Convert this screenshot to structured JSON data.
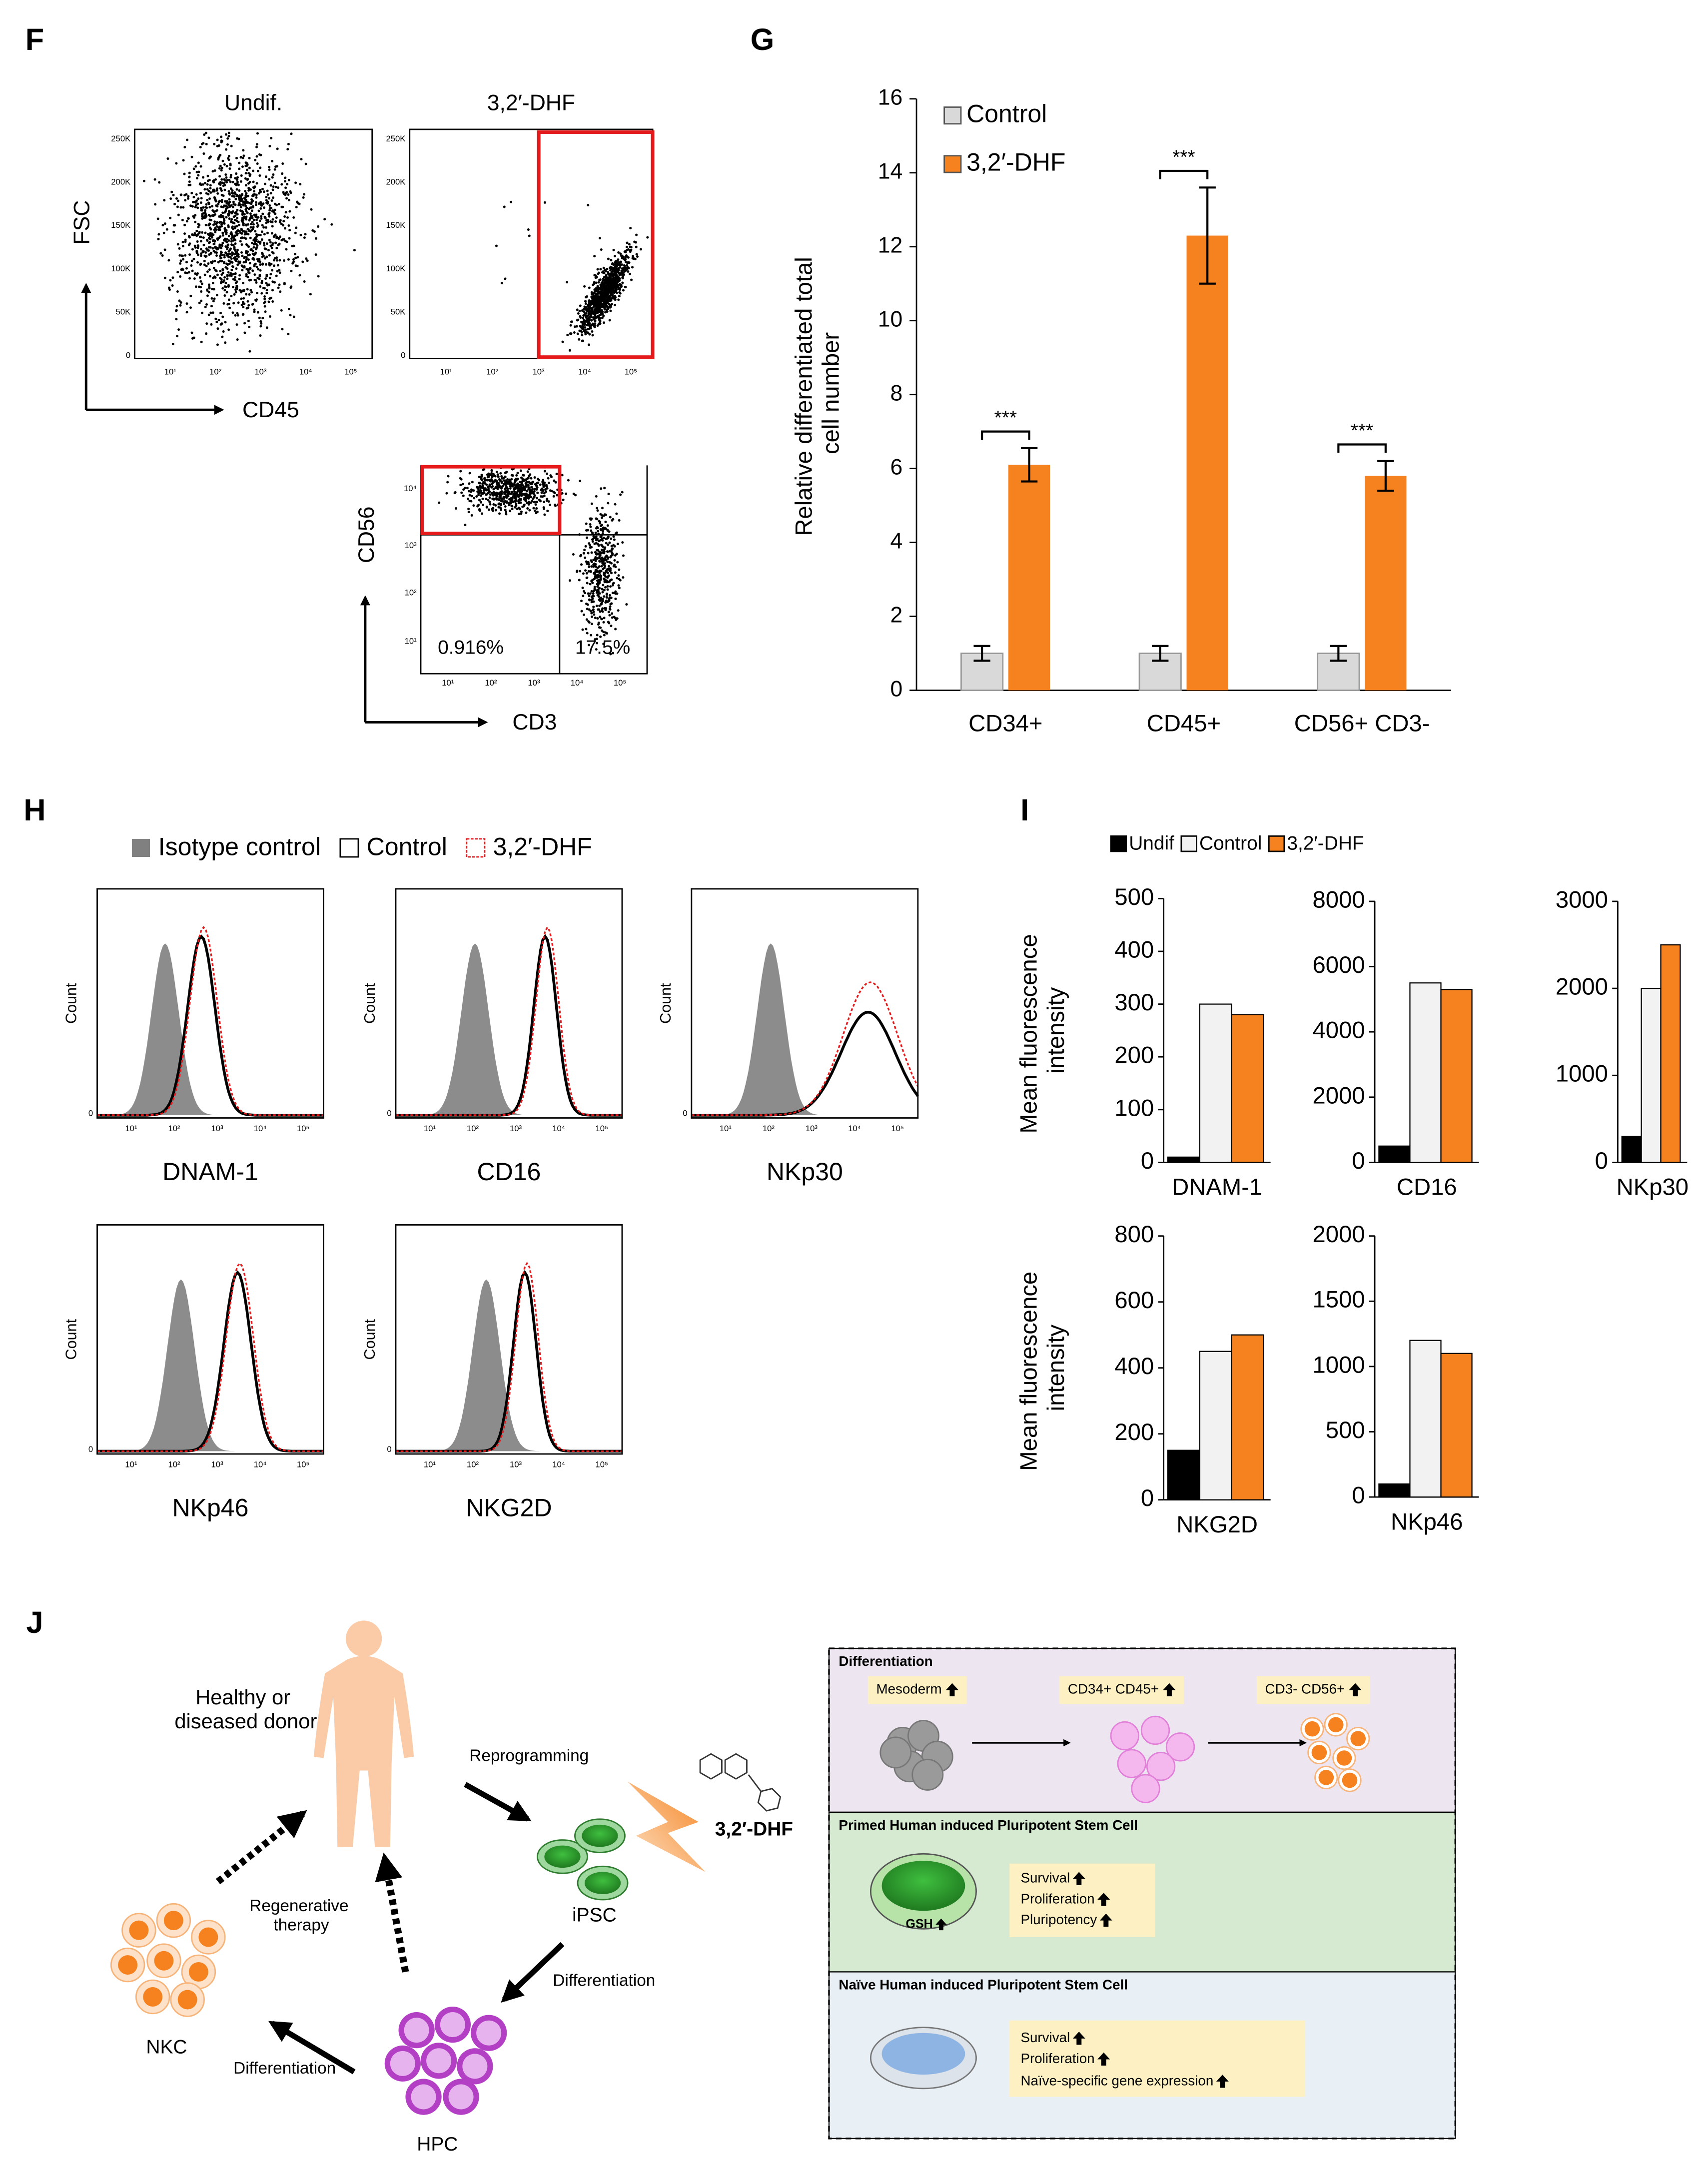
{
  "panel_labels": [
    "F",
    "G",
    "H",
    "I",
    "J"
  ],
  "log_ticks": [
    "10¹",
    "10²",
    "10³",
    "10⁴",
    "10⁵"
  ],
  "panel_f": {
    "plots": [
      {
        "title": "Undif."
      },
      {
        "title": "3,2′-DHF"
      }
    ],
    "y_label": "FSC",
    "x_label": "CD45",
    "fsc_ticks": [
      "250K",
      "200K",
      "150K",
      "100K",
      "50K",
      "0"
    ],
    "gate_plot": {
      "y_label": "CD56",
      "x_label": "CD3",
      "y_ticks": [
        "10⁴",
        "10³",
        "10²",
        "10¹"
      ],
      "quadrants": [
        "0.916%",
        "17.5%"
      ]
    }
  },
  "chart_data": [
    {
      "type": "bar",
      "y_label": "Relative differentiated total cell number",
      "categories": [
        "CD34+",
        "CD45+",
        "CD56+ CD3-"
      ],
      "series": [
        {
          "name": "Control",
          "color": "#d9d9d9",
          "values": [
            1,
            1,
            1
          ],
          "errors": [
            0.2,
            0.2,
            0.2
          ]
        },
        {
          "name": "3,2′-DHF",
          "color": "#f5821f",
          "values": [
            6.1,
            12.3,
            5.8
          ],
          "errors": [
            0.45,
            1.3,
            0.4
          ]
        }
      ],
      "annotations": [
        "***",
        "***",
        "***"
      ],
      "ylim": [
        0,
        16
      ],
      "yticks": [
        0,
        2,
        4,
        6,
        8,
        10,
        12,
        14,
        16
      ],
      "legend": "upper left"
    },
    {
      "type": "bar-multiples",
      "series": [
        {
          "name": "Undif",
          "color": "#000000"
        },
        {
          "name": "Control",
          "color": "#f2f2f2"
        },
        {
          "name": "3,2′-DHF",
          "color": "#f5821f"
        }
      ],
      "panels": [
        {
          "x_label": "DNAM-1",
          "y_label": "Mean fluorescence intensity",
          "values": [
            10,
            300,
            280
          ],
          "ylim": [
            0,
            500
          ],
          "yticks": [
            0,
            100,
            200,
            300,
            400,
            500
          ]
        },
        {
          "x_label": "CD16",
          "values": [
            500,
            5500,
            5300
          ],
          "ylim": [
            0,
            8000
          ],
          "yticks": [
            0,
            2000,
            4000,
            6000,
            8000
          ]
        },
        {
          "x_label": "NKp30",
          "values": [
            300,
            2000,
            2500
          ],
          "ylim": [
            0,
            3000
          ],
          "yticks": [
            0,
            1000,
            2000,
            3000
          ]
        },
        {
          "x_label": "NKG2D",
          "y_label": "Mean fluorescence intensity",
          "values": [
            150,
            450,
            500
          ],
          "ylim": [
            0,
            800
          ],
          "yticks": [
            0,
            200,
            400,
            600,
            800
          ]
        },
        {
          "x_label": "NKp46",
          "values": [
            100,
            1200,
            1100
          ],
          "ylim": [
            0,
            2000
          ],
          "yticks": [
            0,
            500,
            1000,
            1500,
            2000
          ]
        }
      ]
    }
  ],
  "panel_h": {
    "legend": [
      "Isotype control",
      "Control",
      "3,2′-DHF"
    ],
    "y_label": "Count",
    "zero_tick": "0",
    "plots": [
      "DNAM-1",
      "CD16",
      "NKp30",
      "NKp46",
      "NKG2D"
    ]
  },
  "panel_j": {
    "donor": "Healthy or diseased donor",
    "reprogramming": "Reprogramming",
    "ipsc": "iPSC",
    "compound": "3,2′-DHF",
    "differentiation_to_hpc": "Differentiation",
    "hpc": "HPC",
    "differentiation_to_nkc": "Differentiation",
    "nkc": "NKC",
    "therapy": "Regenerative therapy",
    "boxes": [
      {
        "title": "Differentiation",
        "items": [
          "Mesoderm",
          "CD34+ CD45+",
          "CD3- CD56+"
        ]
      },
      {
        "title": "Primed Human induced Pluripotent Stem Cell",
        "cell_label": "GSH",
        "items": [
          "Survival",
          "Proliferation",
          "Pluripotency"
        ]
      },
      {
        "title": "Naïve Human induced Pluripotent Stem Cell",
        "items": [
          "Survival",
          "Proliferation",
          "Naïve-specific gene expression"
        ]
      }
    ]
  }
}
